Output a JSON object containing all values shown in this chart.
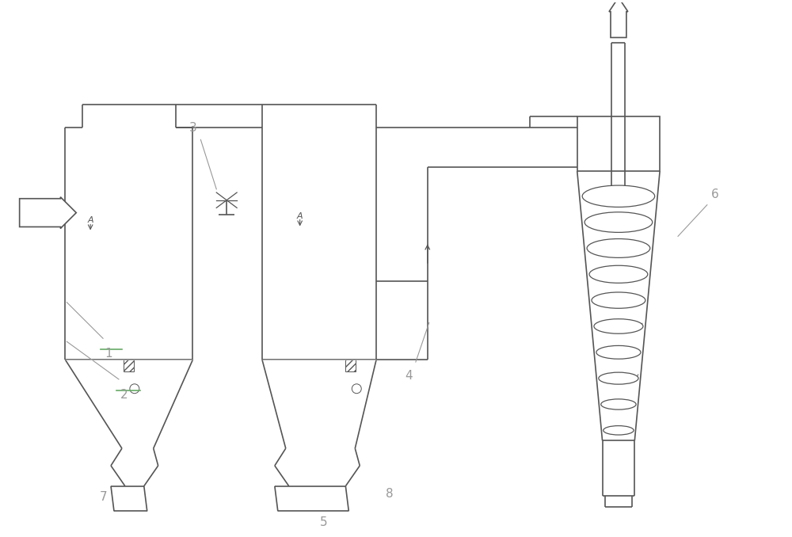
{
  "bg_color": "#ffffff",
  "line_color": "#555555",
  "label_color": "#999999",
  "green_color": "#66aa66",
  "line_width": 1.2,
  "fig_width": 10.0,
  "fig_height": 6.78
}
